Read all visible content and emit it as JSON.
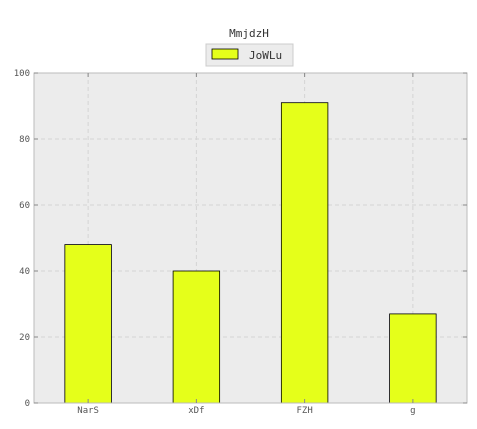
{
  "chart_data": {
    "type": "bar",
    "title": "MmjdzH",
    "xlabel": "",
    "ylabel": "",
    "categories": [
      "NarS",
      "xDf",
      "FZH",
      "g"
    ],
    "series": [
      {
        "name": "JoWLu",
        "values": [
          48,
          40,
          91,
          27
        ],
        "color": "#e5ff1a"
      }
    ],
    "ylim": [
      0,
      100
    ],
    "yticks": [
      0,
      20,
      40,
      60,
      80,
      100
    ],
    "grid": true,
    "legend_position": "top-center",
    "plot_background": "#ececec",
    "grid_color": "#d4d4d4",
    "bar_edge_color": "#000000"
  }
}
